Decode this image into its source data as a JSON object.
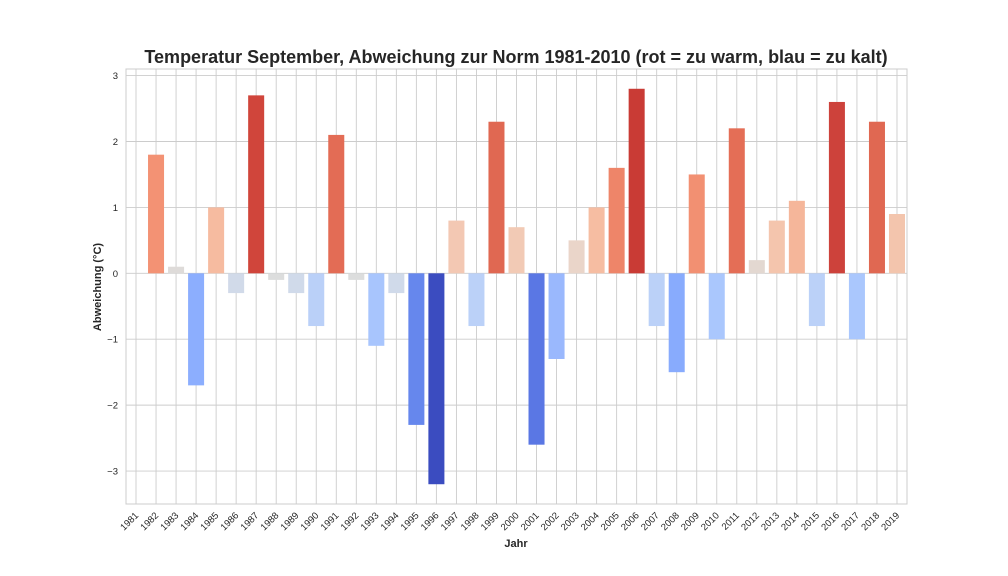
{
  "chart_data": {
    "type": "bar",
    "title": "Temperatur September, Abweichung zur Norm 1981-2010 (rot = zu warm, blau = zu kalt)",
    "xlabel": "Jahr",
    "ylabel": "Abweichung (°C)",
    "ylim": [
      -3.5,
      3.1
    ],
    "yticks": [
      -3,
      -2,
      -1,
      0,
      1,
      2,
      3
    ],
    "ytick_labels": [
      "−3",
      "−2",
      "−1",
      "0",
      "1",
      "2",
      "3"
    ],
    "grid": true,
    "categories": [
      "1981",
      "1982",
      "1983",
      "1984",
      "1985",
      "1986",
      "1987",
      "1988",
      "1989",
      "1990",
      "1991",
      "1992",
      "1993",
      "1994",
      "1995",
      "1996",
      "1997",
      "1998",
      "1999",
      "2000",
      "2001",
      "2002",
      "2003",
      "2004",
      "2005",
      "2006",
      "2007",
      "2008",
      "2009",
      "2010",
      "2011",
      "2012",
      "2013",
      "2014",
      "2015",
      "2016",
      "2017",
      "2018",
      "2019"
    ],
    "values": [
      0.0,
      1.8,
      0.1,
      -1.7,
      1.0,
      -0.3,
      2.7,
      -0.1,
      -0.3,
      -0.8,
      2.1,
      -0.1,
      -1.1,
      -0.3,
      -2.3,
      -3.2,
      0.8,
      -0.8,
      2.3,
      0.7,
      -2.6,
      -1.3,
      0.5,
      1.0,
      1.6,
      2.8,
      -0.8,
      -1.5,
      1.5,
      -1.0,
      2.2,
      0.2,
      0.8,
      1.1,
      -0.8,
      2.6,
      -1.0,
      2.3,
      0.9
    ],
    "colors": [
      "#dddcdc",
      "#f39274",
      "#dedbd9",
      "#8caefe",
      "#f6bba0",
      "#d1dae9",
      "#d0453b",
      "#dcdddd",
      "#d0daea",
      "#bad0f8",
      "#e36c55",
      "#dcdddd",
      "#a8c5fd",
      "#d0daea",
      "#6687ed",
      "#3b4cc0",
      "#f3c8b3",
      "#bbd1f8",
      "#e06852",
      "#f2cab5",
      "#5a77e4",
      "#9ab8fd",
      "#ead5c9",
      "#f6bda2",
      "#ee8569",
      "#c93b35",
      "#bbd1f8",
      "#88abfd",
      "#f29072",
      "#aac7fd",
      "#e46e56",
      "#e3d8d1",
      "#f4c5ad",
      "#f5b69a",
      "#bbd1f8",
      "#cd423b",
      "#aac7fd",
      "#e06852",
      "#f3c5ad"
    ]
  }
}
